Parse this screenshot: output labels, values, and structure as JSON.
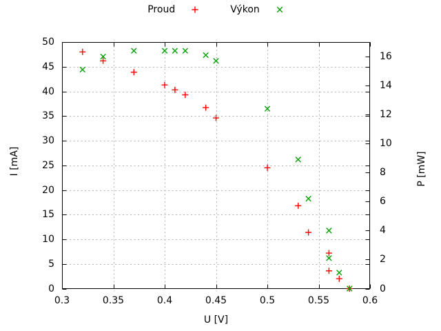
{
  "chart_data": {
    "type": "scatter",
    "title": "",
    "xlabel": "U [V]",
    "ylabel": "I [mA]",
    "y2label": "P [mW]",
    "xlim": [
      0.3,
      0.6
    ],
    "ylim": [
      0,
      50
    ],
    "y2lim": [
      0,
      17
    ],
    "xticks": [
      0.3,
      0.35,
      0.4,
      0.45,
      0.5,
      0.55,
      0.6
    ],
    "xtick_labels": [
      "0.3",
      "0.35",
      "0.4",
      "0.45",
      "0.5",
      "0.55",
      "0.6"
    ],
    "yticks": [
      0,
      5,
      10,
      15,
      20,
      25,
      30,
      35,
      40,
      45,
      50
    ],
    "ytick_labels": [
      "0",
      "5",
      "10",
      "15",
      "20",
      "25",
      "30",
      "35",
      "40",
      "45",
      "50"
    ],
    "y2ticks": [
      0,
      2,
      4,
      6,
      8,
      10,
      12,
      14,
      16
    ],
    "y2tick_labels": [
      "0",
      "2",
      "4",
      "6",
      "8",
      "10",
      "12",
      "14",
      "16"
    ],
    "grid": true,
    "legend_position": "top-center",
    "colors": {
      "proud": "#ff0000",
      "vykon": "#00a000",
      "grid": "#b0b0b0",
      "border": "#000000",
      "text": "#000000",
      "background": "#ffffff"
    },
    "series": [
      {
        "name": "Proud",
        "marker": "plus",
        "axis": "y1",
        "x": [
          0.32,
          0.34,
          0.37,
          0.4,
          0.41,
          0.42,
          0.44,
          0.45,
          0.5,
          0.53,
          0.54,
          0.56,
          0.56,
          0.57,
          0.58
        ],
        "y": [
          48.0,
          46.2,
          43.9,
          41.3,
          40.3,
          39.3,
          36.7,
          34.6,
          24.5,
          16.8,
          11.4,
          7.2,
          3.6,
          2.0,
          0.0
        ]
      },
      {
        "name": "Výkon",
        "marker": "cross",
        "axis": "y2",
        "x": [
          0.32,
          0.34,
          0.37,
          0.4,
          0.41,
          0.42,
          0.44,
          0.45,
          0.5,
          0.53,
          0.54,
          0.56,
          0.56,
          0.57,
          0.58
        ],
        "y": [
          15.1,
          16.0,
          16.4,
          16.4,
          16.4,
          16.4,
          16.1,
          15.7,
          12.4,
          8.9,
          6.2,
          4.0,
          2.1,
          1.1,
          0.0
        ]
      }
    ]
  }
}
